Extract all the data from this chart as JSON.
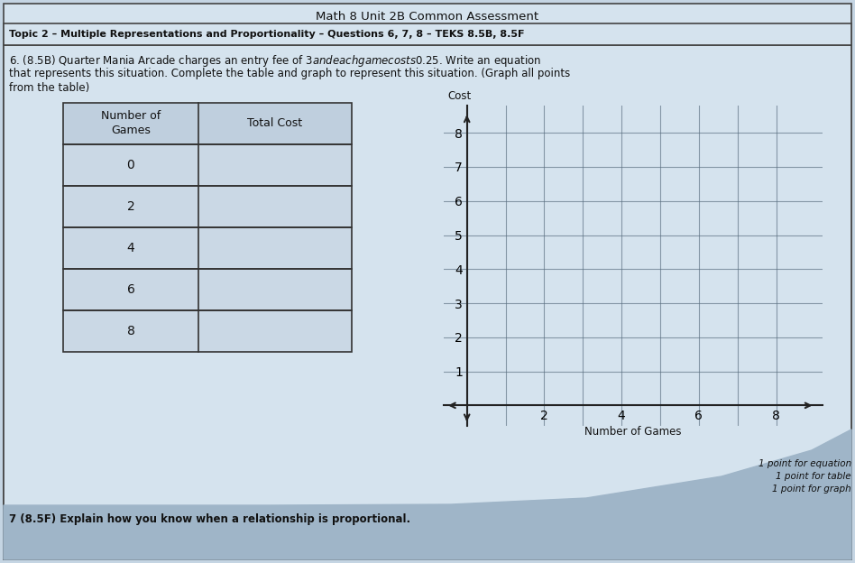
{
  "title": "Math 8 Unit 2B Common Assessment",
  "subtitle": "Topic 2 – Multiple Representations and Proportionality – Questions 6, 7, 8 – TEKS 8.5B, 8.5F",
  "question_line1": "6. (8.5B) Quarter Mania Arcade charges an entry fee of $3 and each game costs $0.25. Write an equation",
  "question_line2": "that represents this situation. Complete the table and graph to represent this situation. (Graph all points",
  "question_line3": "from the table)",
  "table_headers": [
    "Number of\nGames",
    "Total Cost"
  ],
  "table_rows": [
    "0",
    "2",
    "4",
    "6",
    "8"
  ],
  "graph_xlabel": "Number of Games",
  "graph_ylabel": "Cost",
  "scoring_notes": [
    "1 point for equation",
    "1 point for table",
    "1 point for graph"
  ],
  "bottom_text": "(8.5F) Explain how you know when a relationship is proportional.",
  "bg_color": "#c5d5e3",
  "paper_color": "#ccdbe8",
  "lighter_paper": "#d5e3ee",
  "darker_bg": "#9fb5c8",
  "border_color": "#444444",
  "text_color": "#111111",
  "grid_color": "#5a6e80",
  "table_border_color": "#333333",
  "table_fill": "#cad8e5",
  "table_header_fill": "#bfcfde"
}
